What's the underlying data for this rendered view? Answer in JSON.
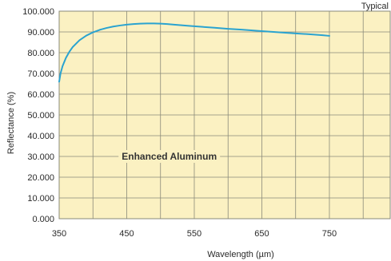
{
  "chart_data": {
    "type": "line",
    "title": "",
    "corner_label": "Typical",
    "xlabel": "Wavelength (µm)",
    "ylabel": "Reflectance (%)",
    "xlim": [
      350,
      840
    ],
    "ylim": [
      0,
      100
    ],
    "x_ticks": [
      350,
      450,
      550,
      650,
      750
    ],
    "x_tick_labels": [
      "350",
      "450",
      "550",
      "650",
      "750"
    ],
    "y_ticks": [
      0,
      10,
      20,
      30,
      40,
      50,
      60,
      70,
      80,
      90,
      100
    ],
    "y_tick_labels": [
      "0.000",
      "10.000",
      "20.000",
      "30.000",
      "40.000",
      "50.000",
      "60.000",
      "70.000",
      "80.000",
      "90.000",
      "100.000"
    ],
    "grid": true,
    "annotation": "Enhanced Aluminum",
    "colors": {
      "plot_background": "#fbf1c2",
      "grid": "#8a8a7a",
      "line": "#2aa3d0"
    },
    "series": [
      {
        "x": [
          350,
          352,
          355,
          360,
          365,
          370,
          380,
          390,
          400,
          410,
          420,
          430,
          440,
          450,
          460,
          470,
          480,
          490,
          500,
          510,
          520,
          540,
          560,
          580,
          600,
          620,
          650,
          680,
          700,
          720,
          740,
          750
        ],
        "y": [
          66.0,
          70.0,
          73.5,
          77.5,
          80.4,
          82.7,
          86.0,
          88.2,
          89.8,
          91.0,
          91.9,
          92.6,
          93.1,
          93.5,
          93.8,
          94.0,
          94.1,
          94.1,
          94.0,
          93.8,
          93.5,
          93.0,
          92.5,
          92.0,
          91.5,
          91.1,
          90.4,
          89.7,
          89.3,
          88.9,
          88.4,
          88.1
        ]
      }
    ]
  }
}
